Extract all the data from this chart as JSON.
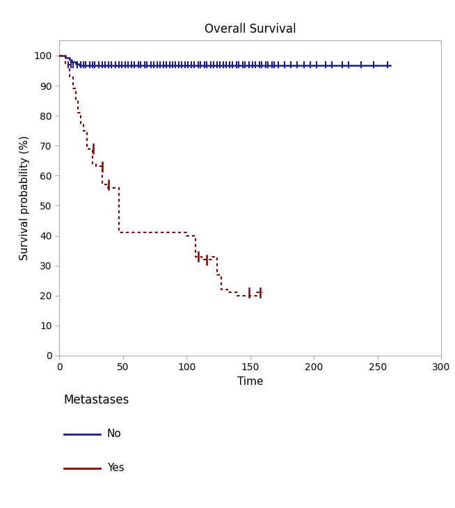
{
  "title": "Overall Survival",
  "xlabel": "Time",
  "ylabel": "Survival probability (%)",
  "xlim": [
    0,
    300
  ],
  "ylim": [
    0,
    105
  ],
  "xticks": [
    0,
    50,
    100,
    150,
    200,
    250,
    300
  ],
  "yticks": [
    0,
    10,
    20,
    30,
    40,
    50,
    60,
    70,
    80,
    90,
    100
  ],
  "blue_color": "#1C1C8C",
  "red_color": "#7B0000",
  "background_color": "#ffffff",
  "blue_km_steps": [
    [
      0,
      100
    ],
    [
      5,
      100
    ],
    [
      5,
      99.3
    ],
    [
      8,
      99.3
    ],
    [
      8,
      98.6
    ],
    [
      10,
      98.6
    ],
    [
      10,
      97.9
    ],
    [
      13,
      97.9
    ],
    [
      13,
      97.3
    ],
    [
      16,
      97.3
    ],
    [
      16,
      96.7
    ],
    [
      260,
      96.7
    ]
  ],
  "blue_censors": [
    7,
    9,
    11,
    14,
    17,
    19,
    21,
    24,
    26,
    28,
    31,
    34,
    36,
    39,
    41,
    44,
    47,
    49,
    52,
    54,
    57,
    59,
    62,
    64,
    67,
    69,
    72,
    74,
    77,
    79,
    82,
    84,
    87,
    89,
    91,
    94,
    96,
    99,
    101,
    104,
    106,
    109,
    111,
    114,
    116,
    119,
    121,
    124,
    126,
    129,
    131,
    134,
    136,
    139,
    141,
    144,
    146,
    149,
    152,
    154,
    157,
    159,
    162,
    164,
    167,
    169,
    172,
    177,
    182,
    187,
    192,
    197,
    202,
    209,
    214,
    222,
    227,
    237,
    247,
    258
  ],
  "red_km_steps": [
    [
      0,
      100
    ],
    [
      5,
      100
    ],
    [
      5,
      97
    ],
    [
      8,
      97
    ],
    [
      8,
      93
    ],
    [
      11,
      93
    ],
    [
      11,
      89
    ],
    [
      13,
      89
    ],
    [
      13,
      85
    ],
    [
      15,
      85
    ],
    [
      15,
      81
    ],
    [
      17,
      81
    ],
    [
      17,
      77
    ],
    [
      19,
      77
    ],
    [
      19,
      75
    ],
    [
      22,
      75
    ],
    [
      22,
      69
    ],
    [
      26,
      69
    ],
    [
      26,
      64
    ],
    [
      29,
      64
    ],
    [
      29,
      63
    ],
    [
      34,
      63
    ],
    [
      34,
      57
    ],
    [
      38,
      57
    ],
    [
      38,
      56
    ],
    [
      47,
      56
    ],
    [
      47,
      41
    ],
    [
      100,
      41
    ],
    [
      100,
      40
    ],
    [
      107,
      40
    ],
    [
      107,
      33
    ],
    [
      112,
      33
    ],
    [
      112,
      32
    ],
    [
      120,
      32
    ],
    [
      120,
      33
    ],
    [
      124,
      33
    ],
    [
      124,
      27
    ],
    [
      127,
      27
    ],
    [
      127,
      22
    ],
    [
      132,
      22
    ],
    [
      132,
      21
    ],
    [
      140,
      21
    ],
    [
      140,
      20
    ],
    [
      155,
      20
    ],
    [
      155,
      21
    ],
    [
      160,
      21
    ]
  ],
  "red_censors_with_y": [
    [
      27,
      69
    ],
    [
      34,
      63
    ],
    [
      39,
      57
    ],
    [
      109,
      33
    ],
    [
      116,
      32
    ],
    [
      149,
      21
    ],
    [
      158,
      21
    ]
  ],
  "legend_title": "Metastases",
  "legend_entries": [
    "No",
    "Yes"
  ],
  "figsize": [
    6.54,
    7.3
  ],
  "dpi": 100
}
